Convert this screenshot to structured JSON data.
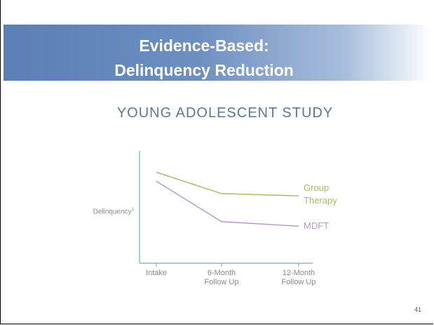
{
  "header": {
    "title_lines": [
      "Evidence-Based:",
      "Delinquency Reduction"
    ]
  },
  "slide_number": "41",
  "chart_data": {
    "type": "line",
    "title": "YOUNG ADOLESCENT STUDY",
    "y_label": "Delinquency",
    "y_label_sup": "1",
    "categories": [
      "Intake",
      "6-Month Follow Up",
      "12-Month Follow Up"
    ],
    "series": [
      {
        "name": "Group Therapy",
        "color": "#a9bb6a",
        "values": [
          81,
          62,
          60
        ]
      },
      {
        "name": "MDFT",
        "color": "#b79cc6",
        "values": [
          73,
          37,
          33
        ]
      }
    ],
    "ylim": [
      0,
      100
    ]
  }
}
